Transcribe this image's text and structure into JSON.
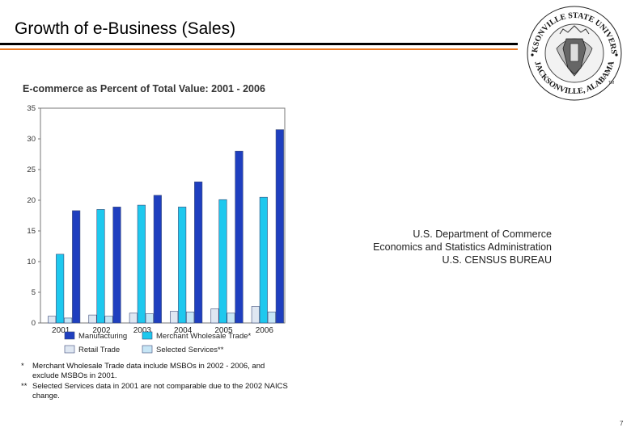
{
  "slide": {
    "title": "Growth of e-Business (Sales)",
    "page_number": "7"
  },
  "seal": {
    "top_text": "JACKSONVILLE STATE UNIVERSITY",
    "bottom_text": "JACKSONVILLE, ALABAMA",
    "tm": "TM"
  },
  "source": {
    "line1": "U.S. Department of Commerce",
    "line2": "Economics and Statistics Administration",
    "line3": "U.S. CENSUS BUREAU"
  },
  "colors": {
    "manufacturing": "#1f3fbf",
    "merchant": "#1ec8ee",
    "retail": "#dfe7f2",
    "services": "#c7e6f6",
    "accent_orange": "#e87722"
  },
  "chart_data": {
    "type": "bar",
    "title": "E-commerce as Percent of Total Value: 2001 - 2006",
    "categories": [
      "2001",
      "2002",
      "2003",
      "2004",
      "2005",
      "2006"
    ],
    "ylim": [
      0,
      35
    ],
    "yticks": [
      0,
      5,
      10,
      15,
      20,
      25,
      30,
      35
    ],
    "series": [
      {
        "name": "Manufacturing",
        "color": "#1f3fbf",
        "values": [
          18.3,
          18.9,
          20.8,
          23.0,
          28.0,
          31.5
        ]
      },
      {
        "name": "Merchant Wholesale Trade*",
        "color": "#1ec8ee",
        "values": [
          11.2,
          18.5,
          19.2,
          18.9,
          20.1,
          20.5
        ]
      },
      {
        "name": "Retail Trade",
        "color": "#dfe7f2",
        "values": [
          1.1,
          1.3,
          1.6,
          1.9,
          2.3,
          2.7
        ]
      },
      {
        "name": "Selected Services**",
        "color": "#c7e6f6",
        "values": [
          0.8,
          1.1,
          1.5,
          1.8,
          1.6,
          1.8
        ]
      }
    ],
    "legend_position": "bottom",
    "notes": [
      {
        "mark": "*",
        "text": "Merchant Wholesale Trade data include MSBOs in 2002 - 2006, and exclude MSBOs in 2001."
      },
      {
        "mark": "**",
        "text": "Selected Services data in 2001 are not comparable due to the 2002 NAICS change."
      }
    ]
  }
}
